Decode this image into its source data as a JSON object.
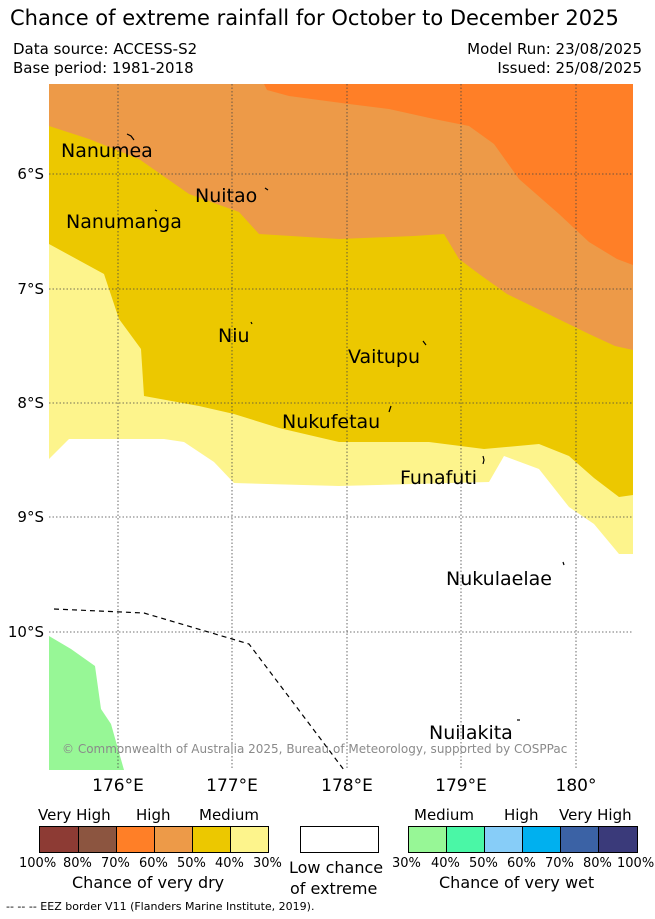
{
  "title": "Chance of extreme rainfall for October to December 2025",
  "header": {
    "data_source": "Data source: ACCESS-S2",
    "base_period": "Base period: 1981-2018",
    "model_run": "Model Run: 23/08/2025",
    "issued": "Issued: 25/08/2025"
  },
  "map": {
    "y_ticks": [
      "6°S",
      "7°S",
      "8°S",
      "9°S",
      "10°S"
    ],
    "x_ticks": [
      "176°E",
      "177°E",
      "178°E",
      "179°E",
      "180°"
    ],
    "islands": [
      "Nanumea",
      "Nuitao",
      "Nanumanga",
      "Niu",
      "Vaitupu",
      "Nukufetau",
      "Funafuti",
      "Nukulaelae",
      "Nuilakita"
    ],
    "credit": "© Commonwealth of Australia 2025, Bureau of Meteorology, supported by COSPPac",
    "colors": {
      "dry_very_high": "#ff7f27",
      "dry_high": "#ed9a48",
      "dry_medium": "#ecc800",
      "dry_low": "#fdf48c",
      "wet_medium": "#97f796"
    }
  },
  "legend": {
    "dry": {
      "categories": [
        "Very High",
        "High",
        "Medium"
      ],
      "percent_ticks": [
        "100%",
        "80%",
        "70%",
        "60%",
        "50%",
        "40%",
        "30%"
      ],
      "colors": [
        "#8d3b34",
        "#8c5540",
        "#ff7f27",
        "#ed9a48",
        "#ecc800",
        "#fdf48c"
      ],
      "label": "Chance of very dry"
    },
    "neutral": {
      "label_line1": "Low chance",
      "label_line2": "of extreme"
    },
    "wet": {
      "categories": [
        "Medium",
        "High",
        "Very High"
      ],
      "percent_ticks": [
        "30%",
        "40%",
        "50%",
        "60%",
        "70%",
        "80%",
        "100%"
      ],
      "colors": [
        "#97f796",
        "#4af7a6",
        "#87cdf8",
        "#00b0ef",
        "#3b62a5",
        "#3a3a7a"
      ],
      "label": "Chance of very wet"
    },
    "eez_note": "-- -- -- EEZ border V11 (Flanders Marine Institute, 2019)."
  }
}
